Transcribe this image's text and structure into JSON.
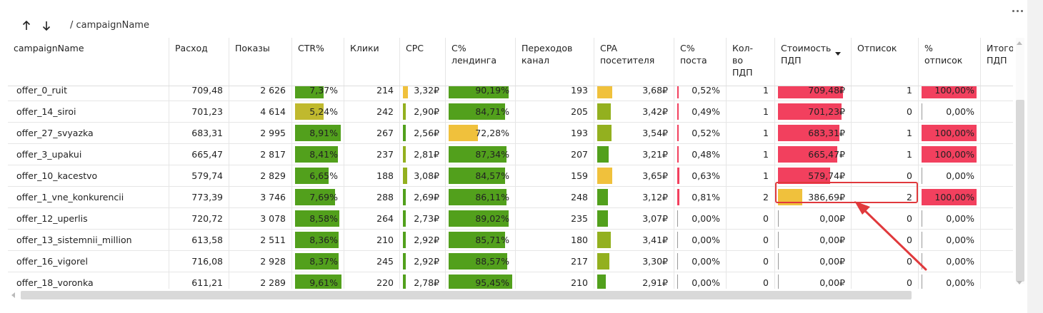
{
  "toolbar": {
    "breadcrumb": "/ campaignName"
  },
  "colors": {
    "green": "#52a01c",
    "olive": "#93b01f",
    "yellow_olive": "#c0b92e",
    "amber": "#f0c13c",
    "red": "#f2405e",
    "highlight": "#e0393c"
  },
  "columns": [
    {
      "key": "name",
      "label": "campaignName",
      "align": "left"
    },
    {
      "key": "spend",
      "label": "Расход",
      "align": "right"
    },
    {
      "key": "impr",
      "label": "Показы",
      "align": "right"
    },
    {
      "key": "ctr",
      "label": "CTR%",
      "align": "right"
    },
    {
      "key": "clicks",
      "label": "Клики",
      "align": "right"
    },
    {
      "key": "cpc",
      "label": "CPC",
      "align": "right"
    },
    {
      "key": "c_land",
      "label": "C%\nлендинга",
      "align": "right"
    },
    {
      "key": "trans",
      "label": "Переходов\nканал",
      "align": "right"
    },
    {
      "key": "cpa",
      "label": "CPA\nпосетителя",
      "align": "right"
    },
    {
      "key": "c_post",
      "label": "C%\nпоста",
      "align": "right"
    },
    {
      "key": "cnt",
      "label": "Кол-\nво\nПДП",
      "align": "right"
    },
    {
      "key": "cost",
      "label": "Стоимость\nПДП",
      "align": "right",
      "sorted": "desc"
    },
    {
      "key": "unsub",
      "label": "Отписок",
      "align": "right"
    },
    {
      "key": "pct_unsub",
      "label": "%\nотписок",
      "align": "right"
    },
    {
      "key": "total",
      "label": "Итого\nПДП",
      "align": "right"
    }
  ],
  "rows": [
    {
      "name": "offer_0_ruit",
      "spend": "709,48",
      "impr": "2 626",
      "ctr": "7,37%",
      "clicks": "214",
      "cpc": "3,32₽",
      "c_land": "90,19%",
      "trans": "193",
      "cpa": "3,68₽",
      "c_post": "0,52%",
      "cnt": "1",
      "cost": "709,48₽",
      "unsub": "1",
      "pct_unsub": "100,00%",
      "total": "",
      "bars": {
        "ctr": [
          0.62,
          "green"
        ],
        "cpc": [
          0.12,
          "amber"
        ],
        "c_land": [
          0.93,
          "green"
        ],
        "cpa": [
          0.2,
          "amber"
        ],
        "c_post": [
          0.03,
          "red"
        ],
        "cost": [
          0.92,
          "red"
        ],
        "pct_unsub": [
          0.98,
          "red"
        ]
      }
    },
    {
      "name": "offer_14_siroi",
      "spend": "701,23",
      "impr": "4 614",
      "ctr": "5,24%",
      "clicks": "242",
      "cpc": "2,90₽",
      "c_land": "84,71%",
      "trans": "205",
      "cpa": "3,42₽",
      "c_post": "0,49%",
      "cnt": "1",
      "cost": "701,23₽",
      "unsub": "0",
      "pct_unsub": "0,00%",
      "total": "",
      "bars": {
        "ctr": [
          0.62,
          "yellow_olive"
        ],
        "cpc": [
          0.08,
          "olive"
        ],
        "c_land": [
          0.88,
          "green"
        ],
        "cpa": [
          0.18,
          "olive"
        ],
        "c_post": [
          0.03,
          "red"
        ],
        "cost": [
          0.9,
          "red"
        ],
        "pct_unsub": [
          0,
          "baseline"
        ]
      }
    },
    {
      "name": "offer_27_svyazka",
      "spend": "683,31",
      "impr": "2 995",
      "ctr": "8,91%",
      "clicks": "267",
      "cpc": "2,56₽",
      "c_land": "72,28%",
      "trans": "193",
      "cpa": "3,54₽",
      "c_post": "0,52%",
      "cnt": "1",
      "cost": "683,31₽",
      "unsub": "1",
      "pct_unsub": "100,00%",
      "total": "",
      "bars": {
        "ctr": [
          0.98,
          "green"
        ],
        "cpc": [
          0.07,
          "green"
        ],
        "c_land": [
          0.46,
          "amber"
        ],
        "cpa": [
          0.19,
          "olive"
        ],
        "c_post": [
          0.03,
          "red"
        ],
        "cost": [
          0.87,
          "red"
        ],
        "pct_unsub": [
          0.98,
          "red"
        ]
      }
    },
    {
      "name": "offer_3_upakui",
      "spend": "665,47",
      "impr": "2 817",
      "ctr": "8,41%",
      "clicks": "237",
      "cpc": "2,81₽",
      "c_land": "87,34%",
      "trans": "207",
      "cpa": "3,21₽",
      "c_post": "0,48%",
      "cnt": "1",
      "cost": "665,47₽",
      "unsub": "1",
      "pct_unsub": "100,00%",
      "total": "",
      "bars": {
        "ctr": [
          0.92,
          "green"
        ],
        "cpc": [
          0.08,
          "olive"
        ],
        "c_land": [
          0.9,
          "green"
        ],
        "cpa": [
          0.15,
          "green"
        ],
        "c_post": [
          0.03,
          "red"
        ],
        "cost": [
          0.84,
          "red"
        ],
        "pct_unsub": [
          0.98,
          "red"
        ]
      }
    },
    {
      "name": "offer_10_kacestvo",
      "spend": "579,74",
      "impr": "2 829",
      "ctr": "6,65%",
      "clicks": "188",
      "cpc": "3,08₽",
      "c_land": "84,57%",
      "trans": "159",
      "cpa": "3,65₽",
      "c_post": "0,63%",
      "cnt": "1",
      "cost": "579,74₽",
      "unsub": "0",
      "pct_unsub": "0,00%",
      "total": "",
      "bars": {
        "ctr": [
          0.72,
          "green"
        ],
        "cpc": [
          0.1,
          "olive"
        ],
        "c_land": [
          0.88,
          "green"
        ],
        "cpa": [
          0.2,
          "amber"
        ],
        "c_post": [
          0.04,
          "red"
        ],
        "cost": [
          0.74,
          "red"
        ],
        "pct_unsub": [
          0,
          "baseline"
        ]
      }
    },
    {
      "name": "offer_1_vne_konkurencii",
      "spend": "773,39",
      "impr": "3 746",
      "ctr": "7,69%",
      "clicks": "288",
      "cpc": "2,69₽",
      "c_land": "86,11%",
      "trans": "248",
      "cpa": "3,12₽",
      "c_post": "0,81%",
      "cnt": "2",
      "cost": "386,69₽",
      "unsub": "2",
      "pct_unsub": "100,00%",
      "total": "",
      "bars": {
        "ctr": [
          0.86,
          "green"
        ],
        "cpc": [
          0.07,
          "green"
        ],
        "c_land": [
          0.9,
          "green"
        ],
        "cpa": [
          0.14,
          "green"
        ],
        "c_post": [
          0.05,
          "red"
        ],
        "cost": [
          0.34,
          "amber"
        ],
        "pct_unsub": [
          0.98,
          "red"
        ]
      }
    },
    {
      "name": "offer_12_uperlis",
      "spend": "720,72",
      "impr": "3 078",
      "ctr": "8,58%",
      "clicks": "264",
      "cpc": "2,73₽",
      "c_land": "89,02%",
      "trans": "235",
      "cpa": "3,07₽",
      "c_post": "0,00%",
      "cnt": "0",
      "cost": "0,00₽",
      "unsub": "0",
      "pct_unsub": "0,00%",
      "total": "",
      "bars": {
        "ctr": [
          0.96,
          "green"
        ],
        "cpc": [
          0.07,
          "green"
        ],
        "c_land": [
          0.93,
          "green"
        ],
        "cpa": [
          0.14,
          "green"
        ],
        "c_post": [
          0,
          "baseline"
        ],
        "cost": [
          0,
          "baseline"
        ],
        "pct_unsub": [
          0,
          "baseline"
        ]
      }
    },
    {
      "name": "offer_13_sistemnii_million",
      "spend": "613,58",
      "impr": "2 511",
      "ctr": "8,36%",
      "clicks": "210",
      "cpc": "2,92₽",
      "c_land": "85,71%",
      "trans": "180",
      "cpa": "3,41₽",
      "c_post": "0,00%",
      "cnt": "0",
      "cost": "0,00₽",
      "unsub": "0",
      "pct_unsub": "0,00%",
      "total": "",
      "bars": {
        "ctr": [
          0.94,
          "green"
        ],
        "cpc": [
          0.08,
          "green"
        ],
        "c_land": [
          0.88,
          "green"
        ],
        "cpa": [
          0.18,
          "olive"
        ],
        "c_post": [
          0,
          "baseline"
        ],
        "cost": [
          0,
          "baseline"
        ],
        "pct_unsub": [
          0,
          "baseline"
        ]
      }
    },
    {
      "name": "offer_16_vigorel",
      "spend": "716,08",
      "impr": "2 928",
      "ctr": "8,37%",
      "clicks": "245",
      "cpc": "2,92₽",
      "c_land": "88,57%",
      "trans": "217",
      "cpa": "3,30₽",
      "c_post": "0,00%",
      "cnt": "0",
      "cost": "0,00₽",
      "unsub": "0",
      "pct_unsub": "0,00%",
      "total": "",
      "bars": {
        "ctr": [
          0.94,
          "green"
        ],
        "cpc": [
          0.08,
          "green"
        ],
        "c_land": [
          0.91,
          "green"
        ],
        "cpa": [
          0.16,
          "olive"
        ],
        "c_post": [
          0,
          "baseline"
        ],
        "cost": [
          0,
          "baseline"
        ],
        "pct_unsub": [
          0,
          "baseline"
        ]
      }
    },
    {
      "name": "offer_18_voronka",
      "spend": "611,21",
      "impr": "2 289",
      "ctr": "9,61%",
      "clicks": "220",
      "cpc": "2,78₽",
      "c_land": "95,45%",
      "trans": "210",
      "cpa": "2,91₽",
      "c_post": "0,00%",
      "cnt": "0",
      "cost": "0,00₽",
      "unsub": "0",
      "pct_unsub": "0,00%",
      "total": "",
      "bars": {
        "ctr": [
          1.0,
          "green"
        ],
        "cpc": [
          0.08,
          "green"
        ],
        "c_land": [
          0.99,
          "green"
        ],
        "cpa": [
          0.12,
          "green"
        ],
        "c_post": [
          0,
          "baseline"
        ],
        "cost": [
          0,
          "baseline"
        ],
        "pct_unsub": [
          0,
          "baseline"
        ]
      }
    }
  ]
}
